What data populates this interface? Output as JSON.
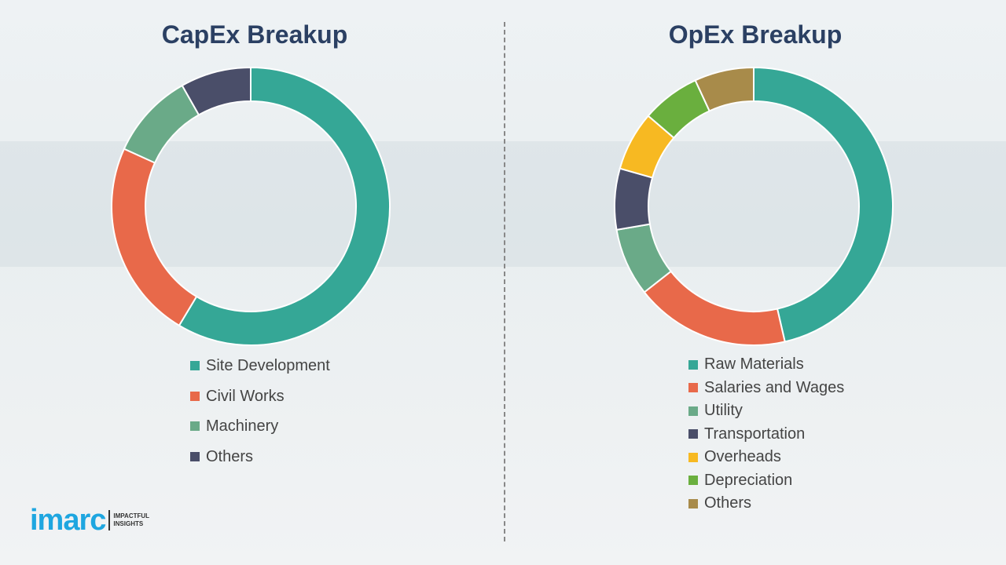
{
  "chart_data": [
    {
      "type": "pie",
      "title": "CapEx Breakup",
      "categories": [
        "Site Development",
        "Civil Works",
        "Machinery",
        "Others"
      ],
      "values": [
        58.6,
        23.2,
        10.0,
        8.2
      ],
      "colors": [
        "#35a796",
        "#e8694a",
        "#6aaa88",
        "#4a4e69"
      ],
      "legend": "bottom"
    },
    {
      "type": "pie",
      "title": "OpEx Breakup",
      "categories": [
        "Raw Materials",
        "Salaries and Wages",
        "Utility",
        "Transportation",
        "Overheads",
        "Depreciation",
        "Others"
      ],
      "values": [
        46.4,
        18.0,
        7.9,
        7.1,
        6.9,
        6.8,
        6.9
      ],
      "colors": [
        "#35a796",
        "#e8694a",
        "#6aaa88",
        "#4a4e69",
        "#f7b922",
        "#6aaf3e",
        "#a88b4a"
      ],
      "legend": "bottom"
    }
  ],
  "logo": {
    "word": "imarc",
    "tagline1": "IMPACTFUL",
    "tagline2": "INSIGHTS",
    "color": "#1ea6e0"
  }
}
